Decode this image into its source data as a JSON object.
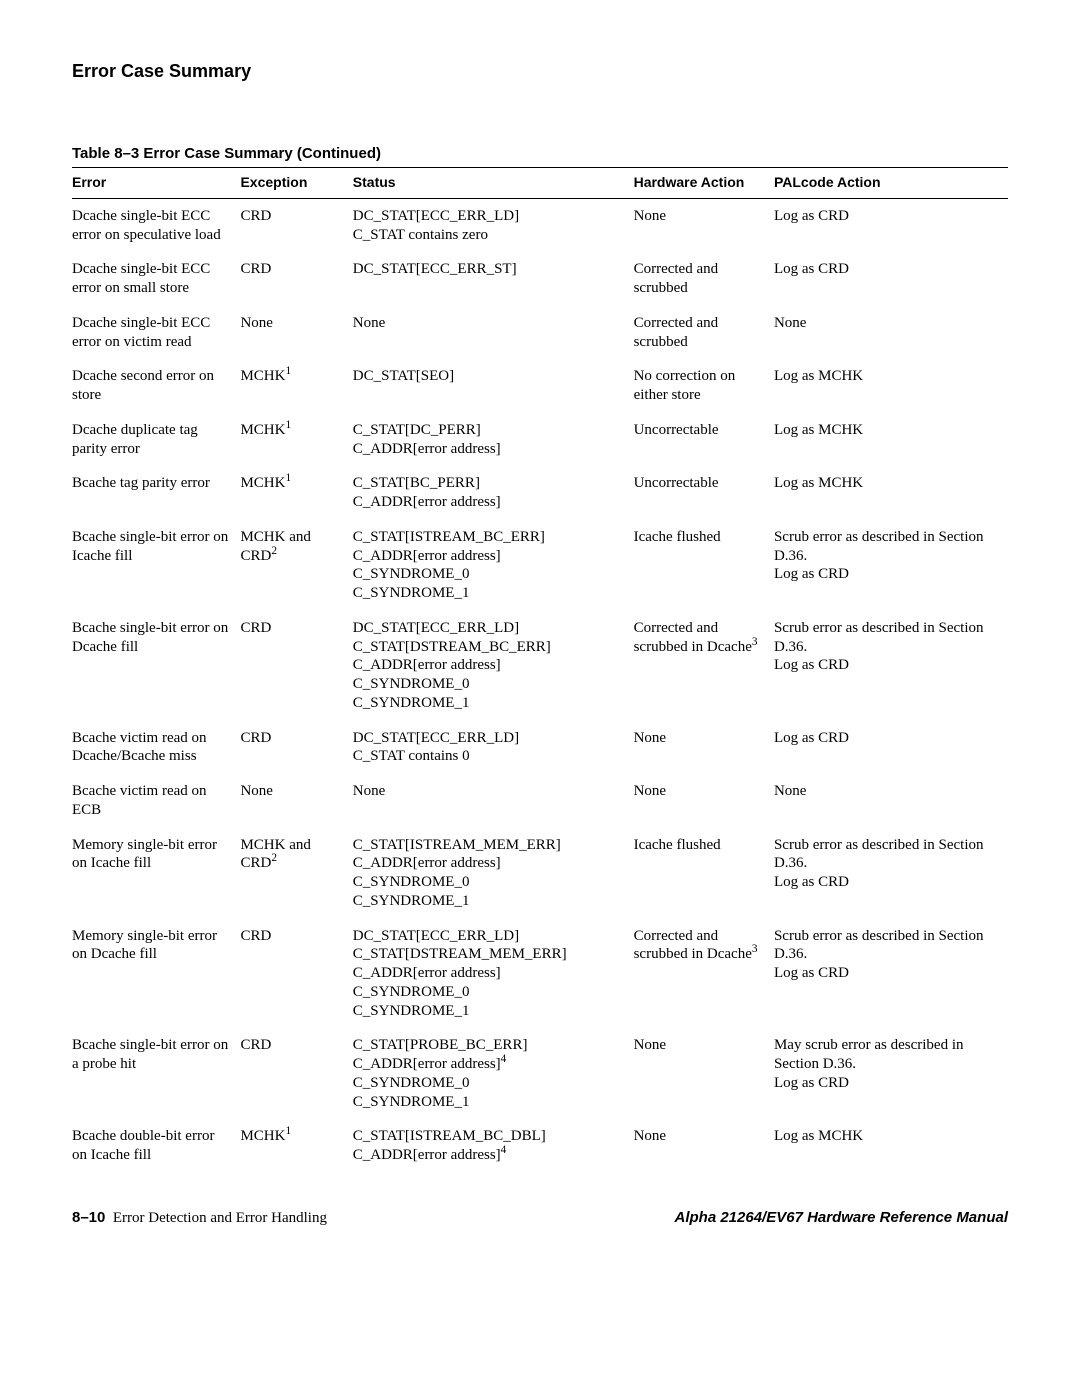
{
  "section_title": "Error Case Summary",
  "table_caption": "Table 8–3  Error Case Summary (Continued)",
  "headers": {
    "error": "Error",
    "exception": "Exception",
    "status": "Status",
    "hw_action": "Hardware Action",
    "pal_action": "PALcode Action"
  },
  "rows": [
    {
      "error": "Dcache single-bit ECC error on speculative load",
      "exception": "CRD",
      "status": "DC_STAT[ECC_ERR_LD]\nC_STAT contains zero",
      "hw": "None",
      "pal": "Log as CRD"
    },
    {
      "error": "Dcache single-bit ECC error on small store",
      "exception": "CRD",
      "status": "DC_STAT[ECC_ERR_ST]",
      "hw": "Corrected and scrubbed",
      "pal": "Log as CRD"
    },
    {
      "error": "Dcache single-bit ECC error on victim read",
      "exception": "None",
      "status": "None",
      "hw": "Corrected and scrubbed",
      "pal": "None"
    },
    {
      "error": "Dcache second error on store",
      "exception_html": "MCHK<sup>1</sup>",
      "status": "DC_STAT[SEO]",
      "hw": "No correction on either store",
      "pal": "Log as MCHK"
    },
    {
      "error": "Dcache duplicate tag parity error",
      "exception_html": "MCHK<sup>1</sup>",
      "status": "C_STAT[DC_PERR]\nC_ADDR[error address]",
      "hw": "Uncorrectable",
      "pal": "Log as MCHK"
    },
    {
      "error": "Bcache tag parity error",
      "exception_html": "MCHK<sup>1</sup>",
      "status": "C_STAT[BC_PERR]\nC_ADDR[error address]",
      "hw": "Uncorrectable",
      "pal": "Log as MCHK"
    },
    {
      "error": "Bcache single-bit error on Icache fill",
      "exception_html": "MCHK and CRD<sup>2</sup>",
      "status": "C_STAT[ISTREAM_BC_ERR]\nC_ADDR[error address]\nC_SYNDROME_0\nC_SYNDROME_1",
      "hw": "Icache flushed",
      "pal": "Scrub error as described in Section D.36.\nLog as CRD"
    },
    {
      "error": "Bcache single-bit error on Dcache fill",
      "exception": "CRD",
      "status": "DC_STAT[ECC_ERR_LD]\nC_STAT[DSTREAM_BC_ERR]\nC_ADDR[error address]\nC_SYNDROME_0\nC_SYNDROME_1",
      "hw_html": "Corrected and scrubbed in Dcache<sup>3</sup>",
      "pal": "Scrub error as described in Section D.36.\nLog as CRD"
    },
    {
      "error": "Bcache victim read on Dcache/Bcache miss",
      "exception": "CRD",
      "status": "DC_STAT[ECC_ERR_LD]\nC_STAT contains 0",
      "hw": "None",
      "pal": "Log as CRD"
    },
    {
      "error": "Bcache victim read on ECB",
      "exception": "None",
      "status": "None",
      "hw": "None",
      "pal": "None"
    },
    {
      "error": "Memory single-bit error on Icache fill",
      "exception_html": "MCHK and CRD<sup>2</sup>",
      "status": "C_STAT[ISTREAM_MEM_ERR]\nC_ADDR[error address]\nC_SYNDROME_0\nC_SYNDROME_1",
      "hw": "Icache flushed",
      "pal": "Scrub error as described in Section D.36.\nLog as CRD"
    },
    {
      "error": "Memory single-bit error on Dcache fill",
      "exception": "CRD",
      "status": "DC_STAT[ECC_ERR_LD]\nC_STAT[DSTREAM_MEM_ERR]\nC_ADDR[error address]\nC_SYNDROME_0\nC_SYNDROME_1",
      "hw_html": "Corrected and scrubbed in Dcache<sup>3</sup>",
      "pal": "Scrub error as described in Section D.36.\nLog as CRD"
    },
    {
      "error": "Bcache single-bit error on a probe hit",
      "exception": "CRD",
      "status_html": "C_STAT[PROBE_BC_ERR]<br>C_ADDR[error address]<sup>4</sup><br>C_SYNDROME_0<br>C_SYNDROME_1",
      "hw": "None",
      "pal": "May scrub error as described in Section D.36.\nLog as CRD"
    },
    {
      "error": "Bcache double-bit error on Icache fill",
      "exception_html": "MCHK<sup>1</sup>",
      "status_html": "C_STAT[ISTREAM_BC_DBL]<br>C_ADDR[error address]<sup>4</sup>",
      "hw": "None",
      "pal": "Log as MCHK"
    }
  ],
  "footer": {
    "page": "8–10",
    "chapter": "Error Detection and Error Handling",
    "manual": "Alpha 21264/EV67 Hardware Reference Manual"
  }
}
